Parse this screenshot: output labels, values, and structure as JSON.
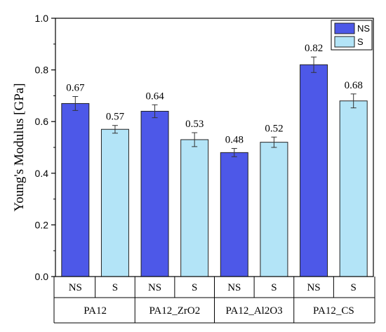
{
  "chart_data": {
    "type": "bar",
    "title": "",
    "xlabel": "",
    "ylabel": "Young's Modulus [GPa]",
    "ylim": [
      0,
      1.0
    ],
    "yticks": [
      "0.0",
      "0.2",
      "0.4",
      "0.6",
      "0.8",
      "1.0"
    ],
    "ytick_values": [
      0.0,
      0.2,
      0.4,
      0.6,
      0.8,
      1.0
    ],
    "grid": false,
    "legend_position": "top-right",
    "groups": [
      "PA12",
      "PA12_ZrO2",
      "PA12_Al2O3",
      "PA12_CS"
    ],
    "subcategories": [
      "NS",
      "S"
    ],
    "series": [
      {
        "name": "NS",
        "color": "#4d58e8",
        "values": [
          0.67,
          0.64,
          0.48,
          0.82
        ],
        "errors": [
          0.027,
          0.025,
          0.016,
          0.03
        ],
        "labels": [
          "0.67",
          "0.64",
          "0.48",
          "0.82"
        ]
      },
      {
        "name": "S",
        "color": "#b3e4f7",
        "values": [
          0.57,
          0.53,
          0.52,
          0.68
        ],
        "errors": [
          0.015,
          0.027,
          0.02,
          0.027
        ],
        "labels": [
          "0.57",
          "0.53",
          "0.52",
          "0.68"
        ]
      }
    ]
  }
}
